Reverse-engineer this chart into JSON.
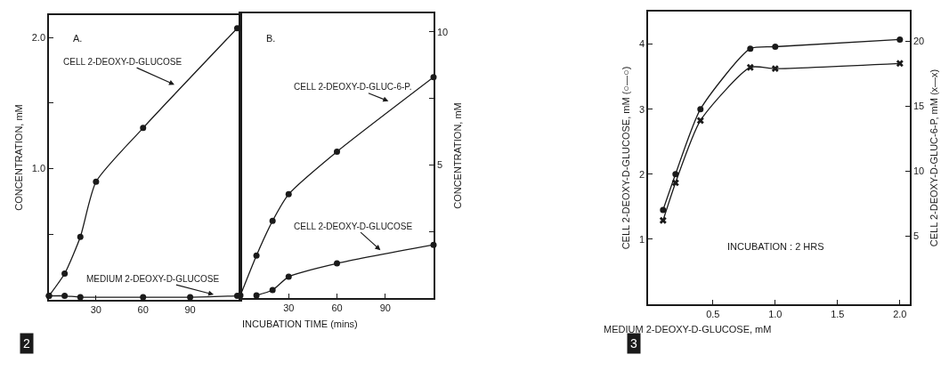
{
  "chart_data": [
    {
      "type": "line",
      "xlabel": "INCUBATION TIME (mins)",
      "ylabel": "CONCENTRATION, mM",
      "xlim": [
        0,
        122
      ],
      "ylim": [
        0,
        2.17
      ],
      "xticks": [
        30,
        60,
        90
      ],
      "yticks": [
        {
          "value": 0.5,
          "label": null
        },
        {
          "value": 1.0,
          "label": "1.0"
        },
        {
          "value": 1.5,
          "label": null
        },
        {
          "value": 2.0,
          "label": "2.0"
        }
      ],
      "marker": "circle",
      "line_style": "solid",
      "series": [
        {
          "name": "CELL 2-DEOXY-D-GLUCOSE",
          "color": "#1a1a1a",
          "x": [
            0,
            10,
            20,
            30,
            60,
            120
          ],
          "values": [
            0.03,
            0.2,
            0.48,
            0.9,
            1.31,
            2.07
          ]
        },
        {
          "name": "MEDIUM 2-DEOXY-D-GLUCOSE",
          "color": "#1a1a1a",
          "x": [
            0,
            10,
            20,
            60,
            90,
            120
          ],
          "values": [
            0.03,
            0.03,
            0.02,
            0.02,
            0.02,
            0.03
          ]
        }
      ],
      "annotations": [
        "A.",
        "2"
      ]
    },
    {
      "type": "line",
      "y2label": "CONCENTRATION, mM",
      "xlim": [
        0,
        120
      ],
      "y2lim": [
        0,
        10.7
      ],
      "xticks": [
        30,
        60,
        90
      ],
      "y2ticks": [
        {
          "value": 2.5,
          "label": null
        },
        5,
        {
          "value": 7.5,
          "label": null
        },
        10
      ],
      "marker": "circle",
      "line_style": "solid",
      "series": [
        {
          "name": "CELL 2-DEOXY-D-GLUC-6-P.",
          "color": "#1a1a1a",
          "axis": "y2",
          "x": [
            0,
            10,
            20,
            30,
            60,
            120
          ],
          "values": [
            0.1,
            1.6,
            2.9,
            3.9,
            5.5,
            8.3
          ]
        },
        {
          "name": "CELL 2-DEOXY-D-GLUCOSE",
          "color": "#1a1a1a",
          "axis": "y2",
          "x": [
            10,
            20,
            30,
            60,
            120
          ],
          "values": [
            0.1,
            0.3,
            0.8,
            1.3,
            2.0
          ]
        }
      ],
      "annotations": [
        "B."
      ]
    },
    {
      "type": "line",
      "xlabel": "MEDIUM 2-DEOXY-D-GLUCOSE, mM",
      "ylabel": "CELL 2-DEOXY-D-GLUCOSE, mM (○—○)",
      "y2label": "CELL 2-DEOXY-D-GLUC-6-P, mM (x—x)",
      "xlim": [
        -0.02,
        2.08
      ],
      "ylim": [
        0,
        4.5
      ],
      "y2lim": [
        -0.27,
        22.3
      ],
      "xticks": [
        {
          "value": 0.5,
          "label": "0.5"
        },
        {
          "value": 1.0,
          "label": "1.0"
        },
        {
          "value": 1.5,
          "label": "1.5"
        },
        {
          "value": 2.0,
          "label": "2.0"
        }
      ],
      "yticks": [
        1,
        2,
        3,
        4
      ],
      "y2ticks": [
        5,
        10,
        15,
        20
      ],
      "line_style": "solid",
      "x": [
        0.1,
        0.2,
        0.4,
        0.8,
        1.0,
        2.0
      ],
      "series": [
        {
          "color": "#1a1a1a",
          "marker": "circle",
          "values": [
            1.45,
            2.0,
            3.0,
            3.93,
            3.96,
            4.07
          ]
        },
        {
          "color": "#1a1a1a",
          "marker": "cross",
          "axis": "y2",
          "values": [
            6.2,
            9.1,
            13.9,
            18.0,
            17.9,
            18.3
          ]
        }
      ],
      "annotations": [
        "INCUBATION : 2 HRS",
        "3"
      ]
    }
  ]
}
